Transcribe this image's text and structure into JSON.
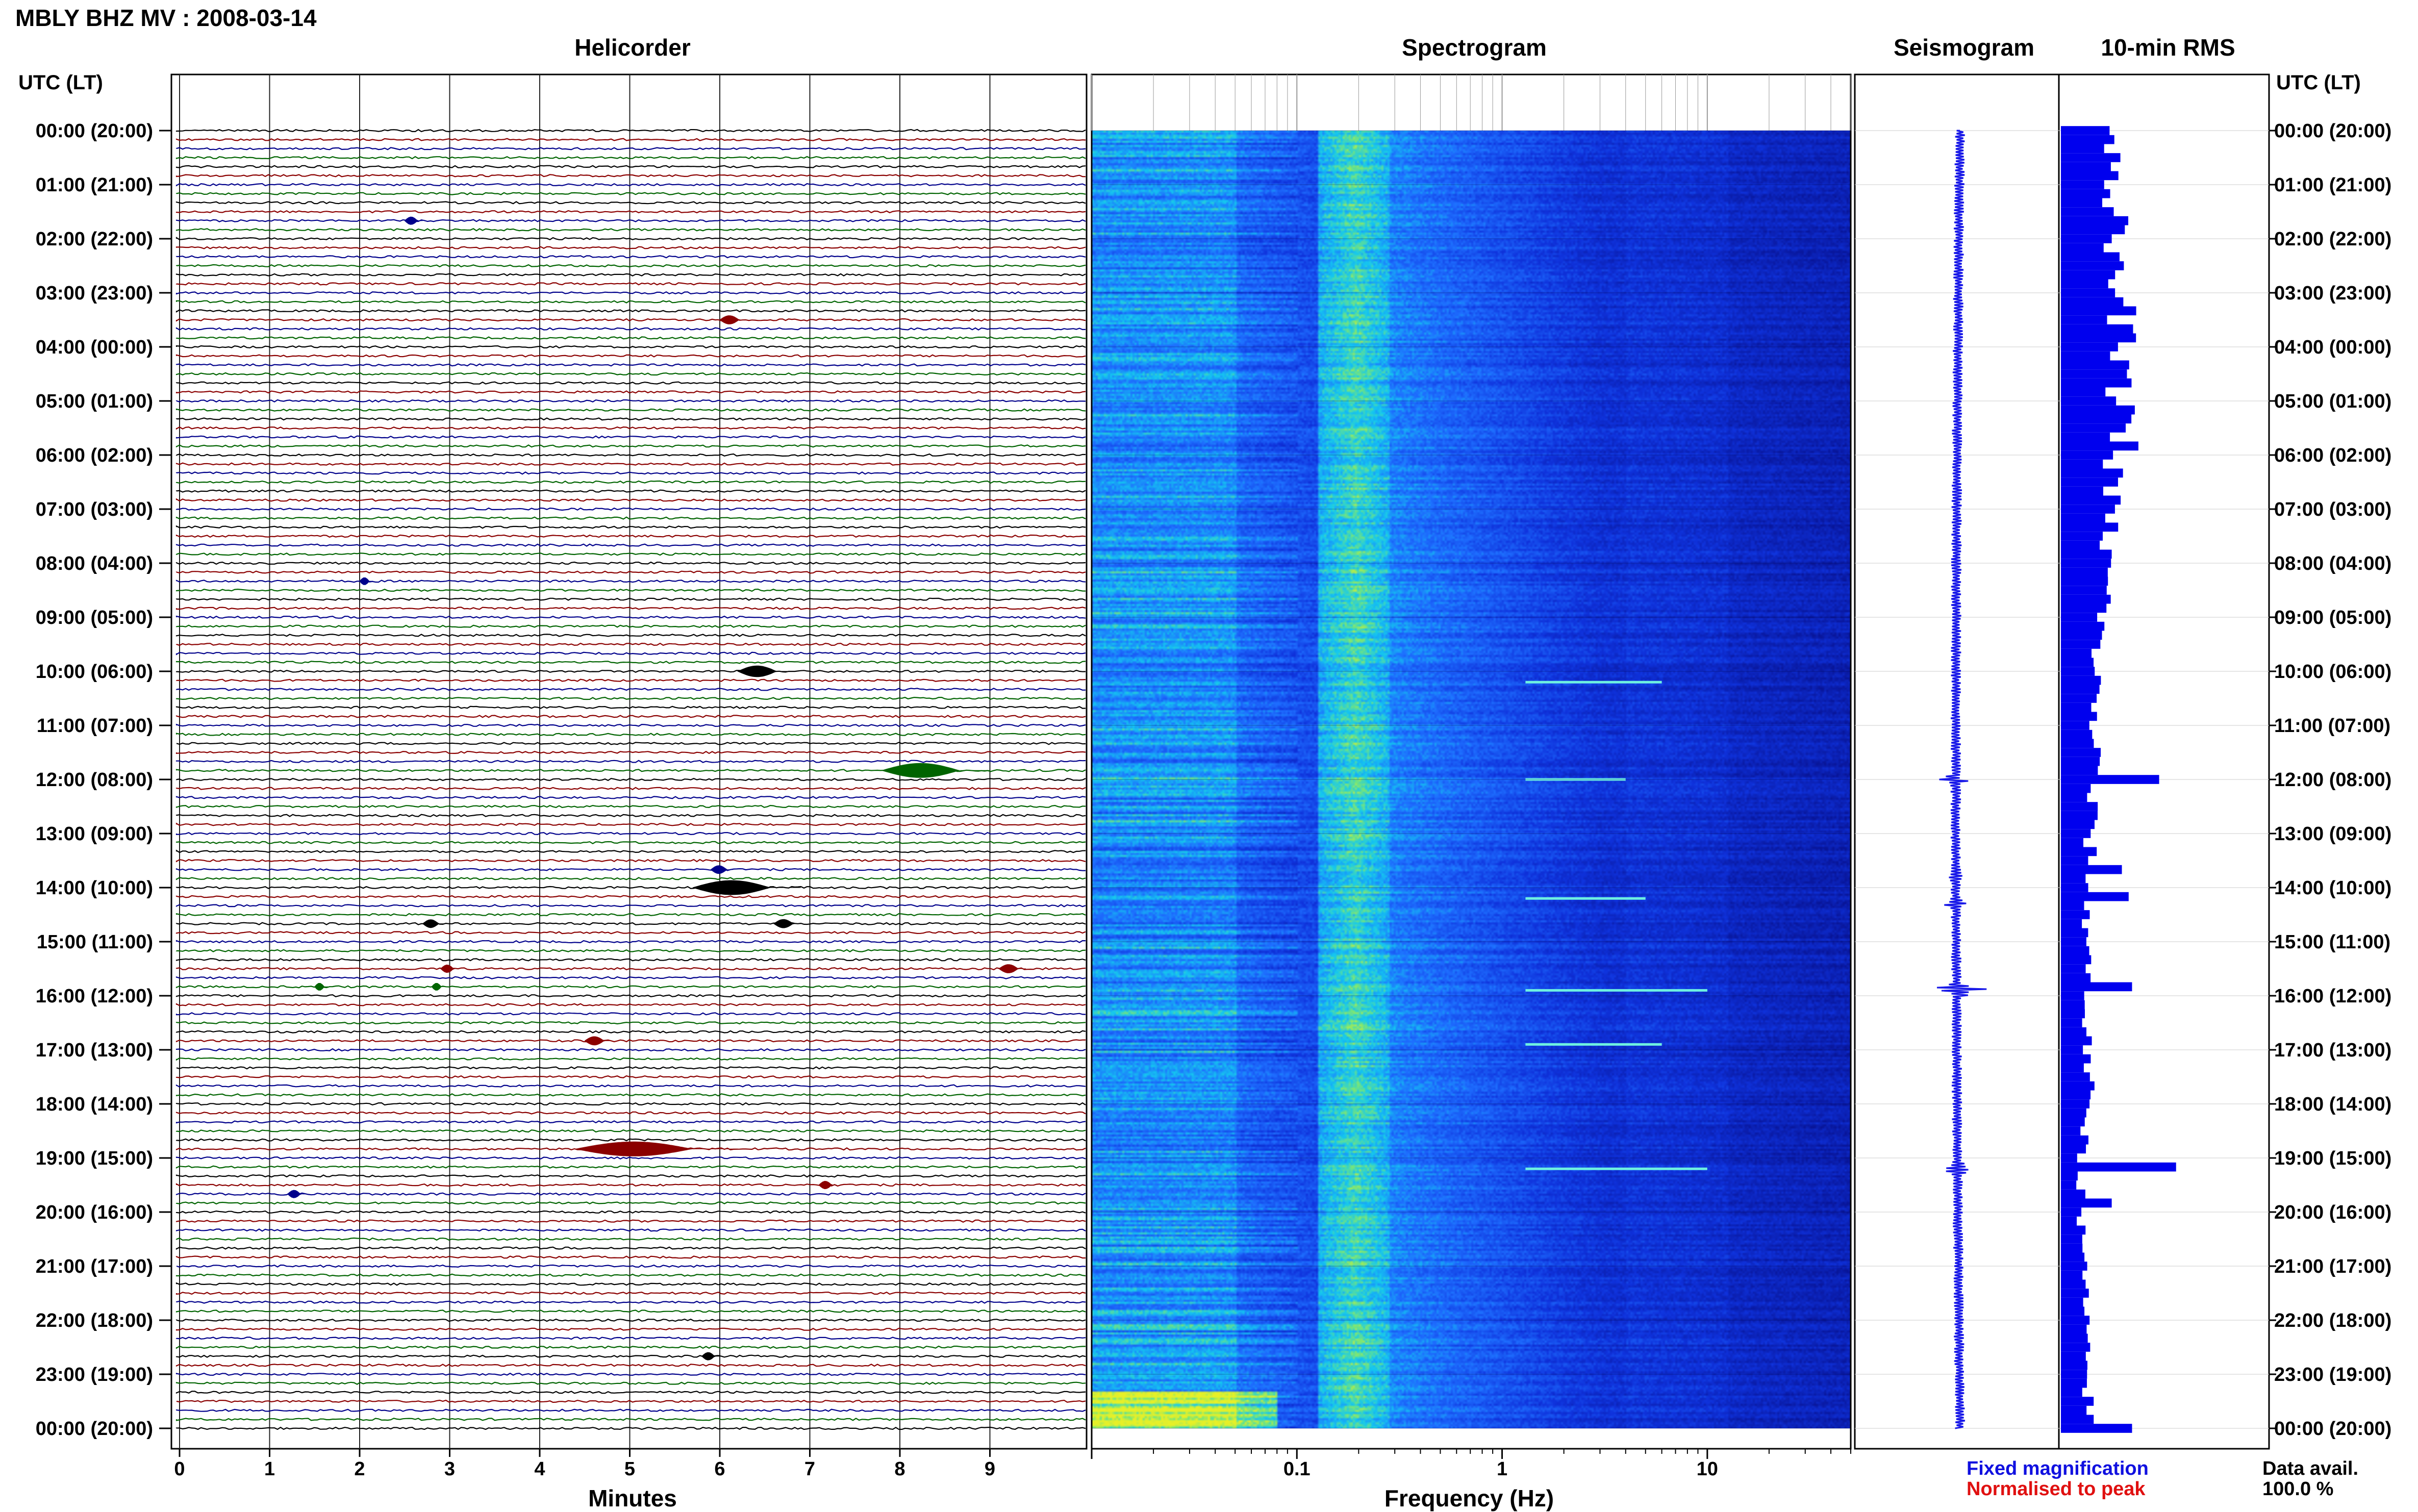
{
  "header": {
    "station_title": "MBLY BHZ MV : 2008-03-14",
    "utc_label_left": "UTC (LT)",
    "utc_label_right": "UTC (LT)"
  },
  "panels": {
    "helicorder_title": "Helicorder",
    "spectrogram_title": "Spectrogram",
    "seismogram_title": "Seismogram",
    "rms_title": "10-min RMS"
  },
  "axes": {
    "minutes_label": "Minutes",
    "frequency_label": "Frequency (Hz)"
  },
  "legend": {
    "fixed": "Fixed magnification",
    "normalised": "Normalised to peak"
  },
  "availability": {
    "label": "Data avail.",
    "value": "100.0 %"
  },
  "colors": {
    "trace_cycle": [
      "#000000",
      "#8b0000",
      "#00008b",
      "#006400"
    ],
    "spectrogram_dark": "#0a1fb4",
    "spectrogram_mid": "#1e64ff",
    "spectrogram_light": "#14c8f0",
    "spectrogram_peak": "#c8e632",
    "rms_bar": "#0000ee",
    "seismogram": "#1818e8"
  },
  "chart_data": [
    {
      "type": "line",
      "panel": "helicorder",
      "title": "Helicorder",
      "xlabel": "Minutes",
      "xlim": [
        0,
        10
      ],
      "x_ticks": [
        0,
        1,
        2,
        3,
        4,
        5,
        6,
        7,
        8,
        9
      ],
      "time_labels": [
        "00:00 (20:00)",
        "01:00 (21:00)",
        "02:00 (22:00)",
        "03:00 (23:00)",
        "04:00 (00:00)",
        "05:00 (01:00)",
        "06:00 (02:00)",
        "07:00 (03:00)",
        "08:00 (04:00)",
        "09:00 (05:00)",
        "10:00 (06:00)",
        "11:00 (07:00)",
        "12:00 (08:00)",
        "13:00 (09:00)",
        "14:00 (10:00)",
        "15:00 (11:00)",
        "16:00 (12:00)",
        "17:00 (13:00)",
        "18:00 (14:00)",
        "19:00 (15:00)",
        "20:00 (16:00)",
        "21:00 (17:00)",
        "22:00 (18:00)",
        "23:00 (19:00)",
        "00:00 (20:00)"
      ],
      "rows_per_hour": 6,
      "events": [
        {
          "hour": 1,
          "row": 4,
          "minute": 2.5,
          "duration": 0.2
        },
        {
          "hour": 3,
          "row": 3,
          "minute": 6.0,
          "duration": 0.3
        },
        {
          "hour": 8,
          "row": 2,
          "minute": 2.0,
          "duration": 0.15
        },
        {
          "hour": 10,
          "row": 0,
          "minute": 6.2,
          "duration": 0.6
        },
        {
          "hour": 11,
          "row": 5,
          "minute": 7.8,
          "duration": 1.2
        },
        {
          "hour": 13,
          "row": 4,
          "minute": 5.9,
          "duration": 0.25
        },
        {
          "hour": 14,
          "row": 0,
          "minute": 5.7,
          "duration": 1.2
        },
        {
          "hour": 14,
          "row": 4,
          "minute": 2.7,
          "duration": 0.25
        },
        {
          "hour": 14,
          "row": 4,
          "minute": 6.6,
          "duration": 0.3
        },
        {
          "hour": 15,
          "row": 3,
          "minute": 2.9,
          "duration": 0.2
        },
        {
          "hour": 15,
          "row": 3,
          "minute": 9.1,
          "duration": 0.3
        },
        {
          "hour": 15,
          "row": 5,
          "minute": 1.5,
          "duration": 0.15
        },
        {
          "hour": 15,
          "row": 5,
          "minute": 2.8,
          "duration": 0.15
        },
        {
          "hour": 16,
          "row": 5,
          "minute": 4.5,
          "duration": 0.3
        },
        {
          "hour": 18,
          "row": 5,
          "minute": 4.4,
          "duration": 1.8
        },
        {
          "hour": 19,
          "row": 3,
          "minute": 7.1,
          "duration": 0.2
        },
        {
          "hour": 19,
          "row": 4,
          "minute": 1.2,
          "duration": 0.2
        },
        {
          "hour": 22,
          "row": 4,
          "minute": 5.8,
          "duration": 0.2
        }
      ]
    },
    {
      "type": "heatmap",
      "panel": "spectrogram",
      "title": "Spectrogram",
      "xlabel": "Frequency (Hz)",
      "x_scale": "log",
      "xlim": [
        0.01,
        50
      ],
      "x_ticks": [
        0.1,
        1,
        10
      ],
      "x_tick_labels": [
        "0.1",
        "1",
        "10"
      ],
      "hours": 24,
      "notable_lines": [
        {
          "hour": 10.2,
          "fmin": 1.3,
          "fmax": 6
        },
        {
          "hour": 12.0,
          "fmin": 1.3,
          "fmax": 4
        },
        {
          "hour": 14.2,
          "fmin": 1.3,
          "fmax": 5
        },
        {
          "hour": 15.9,
          "fmin": 1.3,
          "fmax": 10
        },
        {
          "hour": 16.9,
          "fmin": 1.3,
          "fmax": 6
        },
        {
          "hour": 19.2,
          "fmin": 1.3,
          "fmax": 10
        }
      ]
    },
    {
      "type": "line",
      "panel": "seismogram",
      "title": "Seismogram",
      "hours": 24,
      "spikes": [
        {
          "hour": 12.0,
          "amplitude": 0.2
        },
        {
          "hour": 13.8,
          "amplitude": 0.08
        },
        {
          "hour": 14.3,
          "amplitude": 0.12
        },
        {
          "hour": 15.9,
          "amplitude": 0.45
        },
        {
          "hour": 19.2,
          "amplitude": 0.2
        }
      ]
    },
    {
      "type": "bar",
      "panel": "rms",
      "title": "10-min RMS",
      "bins_per_hour": 6,
      "hours": 24,
      "baseline": [
        0.34,
        0.32,
        0.3,
        0.36,
        0.34,
        0.38,
        0.3,
        0.28,
        0.26,
        0.22,
        0.2,
        0.2,
        0.18,
        0.17,
        0.16,
        0.16,
        0.15,
        0.16,
        0.14,
        0.12,
        0.12,
        0.14,
        0.14,
        0.16
      ],
      "peaks": [
        {
          "hour": 12.0,
          "value": 0.58
        },
        {
          "hour": 13.6,
          "value": 0.36
        },
        {
          "hour": 14.2,
          "value": 0.4
        },
        {
          "hour": 15.9,
          "value": 0.42
        },
        {
          "hour": 19.2,
          "value": 0.68
        },
        {
          "hour": 19.9,
          "value": 0.3
        },
        {
          "hour": 24.0,
          "value": 0.42
        }
      ],
      "xlim": [
        0,
        1
      ]
    }
  ]
}
